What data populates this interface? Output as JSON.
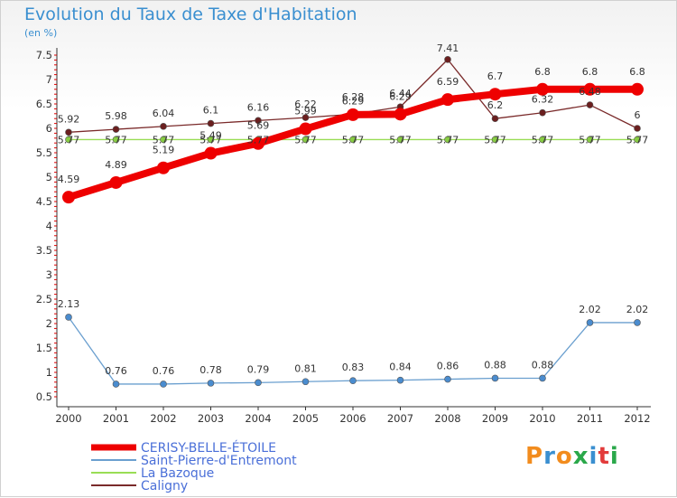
{
  "title": "Evolution du Taux de Taxe d'Habitation",
  "subtitle": "(en %)",
  "logo_text": "Proxiti",
  "chart_data": {
    "type": "line",
    "title": "Evolution du Taux de Taxe d'Habitation",
    "ylabel": "(en %)",
    "xlabel": "",
    "categories": [
      "2000",
      "2001",
      "2002",
      "2003",
      "2004",
      "2005",
      "2006",
      "2007",
      "2008",
      "2009",
      "2010",
      "2011",
      "2012"
    ],
    "ylim": [
      0.5,
      7.5
    ],
    "yticks": [
      "7.5",
      "7",
      "6.5",
      "6",
      "5.5",
      "5",
      "4.5",
      "4",
      "3.5",
      "3",
      "2.5",
      "2",
      "1.5",
      "1",
      "0.5"
    ],
    "grid": false,
    "legend_position": "bottom-left",
    "series": [
      {
        "name": "CERISY-BELLE-ÉTOILE",
        "color": "#ee0000",
        "width": 8,
        "values": [
          4.59,
          4.89,
          5.19,
          5.49,
          5.69,
          5.99,
          6.28,
          6.29,
          6.59,
          6.7,
          6.8,
          6.8,
          6.8
        ],
        "labels": [
          "4.59",
          "4.89",
          "5.19",
          "5.49",
          "5.69",
          "5.99",
          "6.28",
          "6.29",
          "6.59",
          "6.7",
          "6.8",
          "6.8",
          "6.8"
        ]
      },
      {
        "name": "Saint-Pierre-d'Entremont",
        "color": "#6a9fcf",
        "width": 1.3,
        "values": [
          2.13,
          0.76,
          0.76,
          0.78,
          0.79,
          0.81,
          0.83,
          0.84,
          0.86,
          0.88,
          0.88,
          2.02,
          2.02
        ],
        "labels": [
          "2.13",
          "0.76",
          "0.76",
          "0.78",
          "0.79",
          "0.81",
          "0.83",
          "0.84",
          "0.86",
          "0.88",
          "0.88",
          "2.02",
          "2.02"
        ]
      },
      {
        "name": "La Bazoque",
        "color": "#99dd55",
        "width": 1.3,
        "values": [
          5.77,
          5.77,
          5.77,
          5.77,
          5.77,
          5.77,
          5.77,
          5.77,
          5.77,
          5.77,
          5.77,
          5.77,
          5.77
        ],
        "labels": [
          "5.77",
          "5.77",
          "5.77",
          "5.77",
          "5.77",
          "5.77",
          "5.77",
          "5.77",
          "5.77",
          "5.77",
          "5.77",
          "5.77",
          "5.77"
        ]
      },
      {
        "name": "Caligny",
        "color": "#7a2a2a",
        "width": 1.3,
        "values": [
          5.92,
          5.98,
          6.04,
          6.1,
          6.16,
          6.22,
          6.29,
          6.44,
          7.41,
          6.2,
          6.32,
          6.48,
          6.0
        ],
        "labels": [
          "5.92",
          "5.98",
          "6.04",
          "6.1",
          "6.16",
          "6.22",
          "6.29",
          "6.44",
          "7.41",
          "6.2",
          "6.32",
          "6.48",
          "6"
        ]
      }
    ]
  }
}
